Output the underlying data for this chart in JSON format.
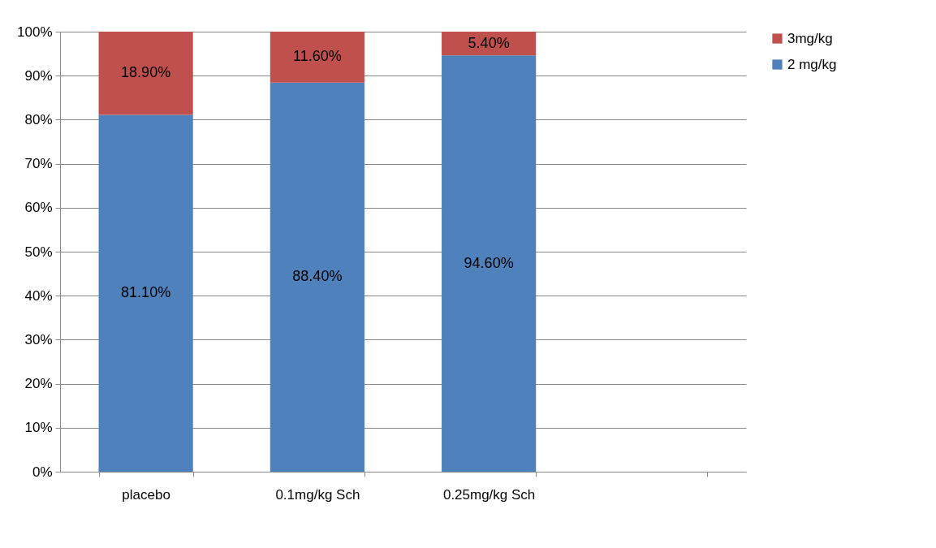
{
  "chart_data": {
    "type": "bar",
    "stacked": true,
    "categories": [
      "placebo",
      "0.1mg/kg Sch",
      "0.25mg/kg Sch",
      null
    ],
    "series": [
      {
        "name": "2 mg/kg",
        "color": "#4f81bd",
        "values": [
          81.1,
          88.4,
          94.6,
          null
        ],
        "value_labels": [
          "81.10%",
          "88.40%",
          "94.60%",
          null
        ]
      },
      {
        "name": "3mg/kg",
        "color": "#c0504d",
        "values": [
          18.9,
          11.6,
          5.4,
          null
        ],
        "value_labels": [
          "18.90%",
          "11.60%",
          "5.40%",
          null
        ]
      }
    ],
    "ylim": [
      0,
      100
    ],
    "yticks": [
      {
        "value": 0,
        "label": "0%"
      },
      {
        "value": 10,
        "label": "10%"
      },
      {
        "value": 20,
        "label": "20%"
      },
      {
        "value": 30,
        "label": "30%"
      },
      {
        "value": 40,
        "label": "40%"
      },
      {
        "value": 50,
        "label": "50%"
      },
      {
        "value": 60,
        "label": "60%"
      },
      {
        "value": 70,
        "label": "70%"
      },
      {
        "value": 80,
        "label": "80%"
      },
      {
        "value": 90,
        "label": "90%"
      },
      {
        "value": 100,
        "label": "100%"
      }
    ],
    "grid": "y",
    "legend": "right"
  }
}
